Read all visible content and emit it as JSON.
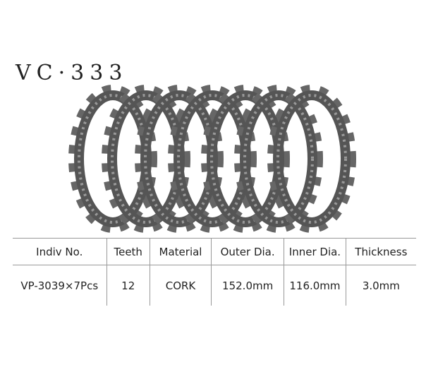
{
  "header": {
    "title": "VC·333"
  },
  "table": {
    "columns": [
      "Indiv No.",
      "Teeth",
      "Material",
      "Outer Dia.",
      "Inner Dia.",
      "Thickness"
    ],
    "rows": [
      [
        "VP-3039×7Pcs",
        "12",
        "CORK",
        "152.0mm",
        "116.0mm",
        "3.0mm"
      ]
    ]
  }
}
